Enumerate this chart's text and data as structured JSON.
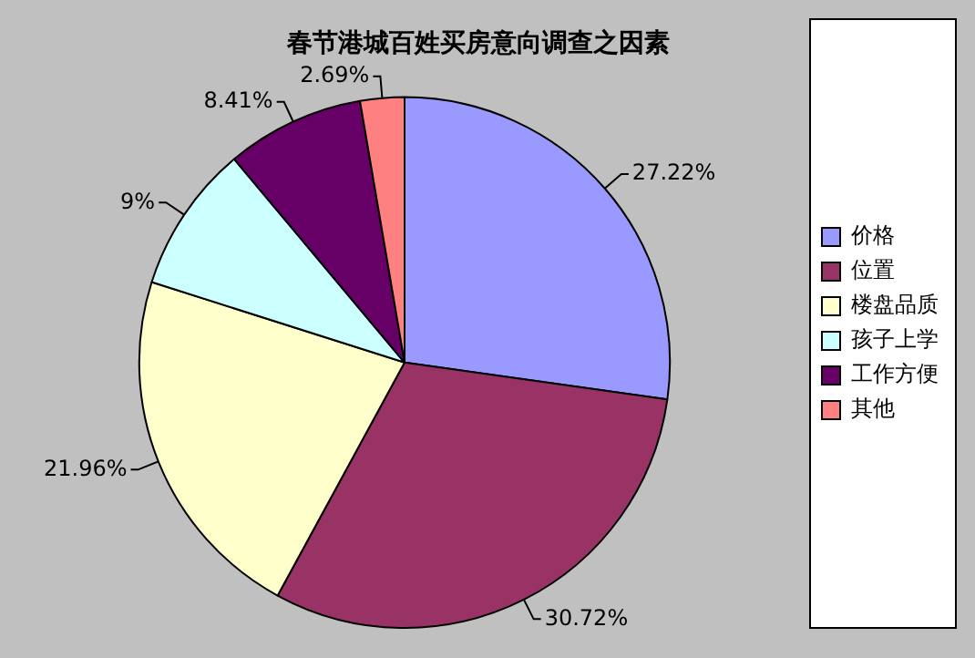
{
  "chart_data": {
    "type": "pie",
    "title": "春节港城百姓买房意向调查之因素",
    "categories": [
      "价格",
      "位置",
      "楼盘品质",
      "孩子上学",
      "工作方便",
      "其他"
    ],
    "values": [
      27.22,
      30.72,
      21.96,
      9,
      8.41,
      2.69
    ],
    "value_labels": [
      "27.22%",
      "30.72%",
      "21.96%",
      "9%",
      "8.41%",
      "2.69%"
    ],
    "colors": [
      "#9999ff",
      "#993366",
      "#ffffcc",
      "#ccffff",
      "#660066",
      "#ff8080"
    ],
    "legend": "right"
  }
}
